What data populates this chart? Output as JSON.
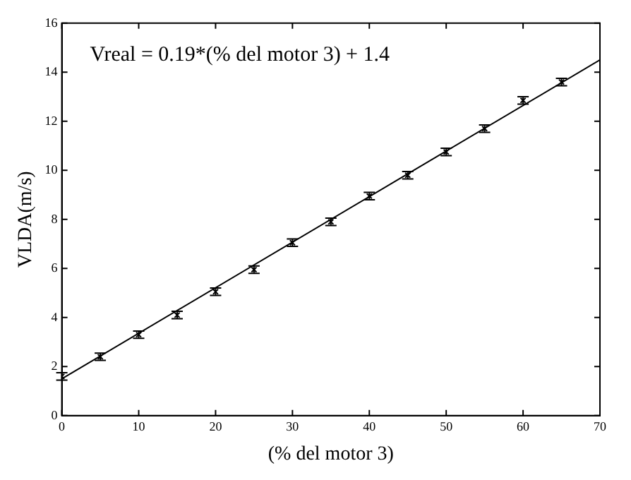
{
  "chart_data": {
    "type": "scatter",
    "xlabel": "(% del motor 3)",
    "ylabel": "VLDA(m/s)",
    "xlim": [
      0,
      70
    ],
    "ylim": [
      0,
      16
    ],
    "xticks": [
      0,
      10,
      20,
      30,
      40,
      50,
      60,
      70
    ],
    "yticks": [
      0,
      2,
      4,
      6,
      8,
      10,
      12,
      14,
      16
    ],
    "grid": false,
    "legend": false,
    "marker": "cross",
    "annotations": [
      "Vreal = 0.19*(% del motor 3) + 1.4"
    ],
    "series": [
      {
        "color": "#000000",
        "x": [
          0,
          5,
          10,
          15,
          20,
          25,
          30,
          35,
          40,
          45,
          50,
          55,
          60,
          65
        ],
        "values": [
          1.6,
          2.4,
          3.3,
          4.1,
          5.05,
          5.95,
          7.05,
          7.9,
          8.95,
          9.8,
          10.75,
          11.7,
          12.85,
          13.6
        ],
        "errors": [
          0.15,
          0.15,
          0.15,
          0.15,
          0.15,
          0.15,
          0.15,
          0.15,
          0.15,
          0.15,
          0.15,
          0.15,
          0.15,
          0.15
        ]
      },
      {
        "type": "line",
        "color": "#000000",
        "x": [
          0,
          70
        ],
        "values": [
          1.5,
          14.5
        ],
        "marker": "none",
        "line_style": "solid"
      }
    ]
  }
}
